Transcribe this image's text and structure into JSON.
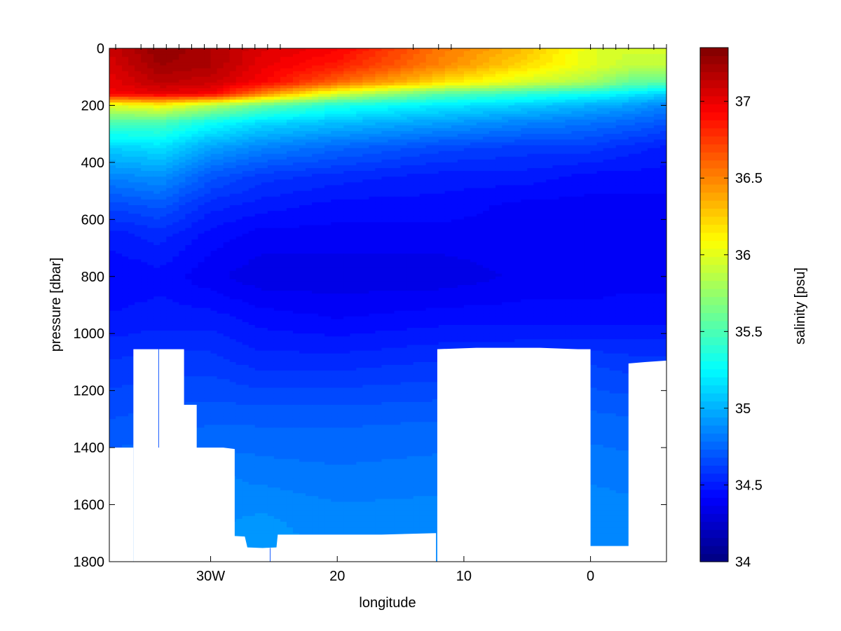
{
  "chart_data": {
    "type": "heatmap",
    "title": "",
    "xlabel": "longitude",
    "ylabel": "pressure [dbar]",
    "colorbar_label": "salinity [psu]",
    "x_range": [
      -38,
      6
    ],
    "y_range": [
      0,
      1800
    ],
    "y_reversed": true,
    "x_ticks": [
      {
        "value": -30,
        "label": "30W"
      },
      {
        "value": -20,
        "label": "20"
      },
      {
        "value": -10,
        "label": "10"
      },
      {
        "value": 0,
        "label": "0"
      }
    ],
    "y_ticks": [
      {
        "value": 0,
        "label": "0"
      },
      {
        "value": 200,
        "label": "200"
      },
      {
        "value": 400,
        "label": "400"
      },
      {
        "value": 600,
        "label": "600"
      },
      {
        "value": 800,
        "label": "800"
      },
      {
        "value": 1000,
        "label": "1000"
      },
      {
        "value": 1200,
        "label": "1200"
      },
      {
        "value": 1400,
        "label": "1400"
      },
      {
        "value": 1600,
        "label": "1600"
      },
      {
        "value": 1800,
        "label": "1800"
      }
    ],
    "colorbar_range": [
      34,
      37.35
    ],
    "colorbar_ticks": [
      {
        "value": 34,
        "label": "34"
      },
      {
        "value": 34.5,
        "label": "34.5"
      },
      {
        "value": 35,
        "label": "35"
      },
      {
        "value": 35.5,
        "label": "35.5"
      },
      {
        "value": 36,
        "label": "36"
      },
      {
        "value": 36.5,
        "label": "36.5"
      },
      {
        "value": 37,
        "label": "37"
      }
    ],
    "colormap": "jet",
    "station_longitudes": [
      -37.5,
      -35.5,
      -34.5,
      -33.5,
      -32.5,
      -31.5,
      -30.5,
      -29.5,
      -28.5,
      -27.5,
      -26.5,
      -25.5,
      -24.5,
      -14,
      -12,
      -11,
      -4,
      0,
      1,
      2,
      3,
      5,
      6
    ],
    "salinity_profile": {
      "depths": [
        0,
        60,
        120,
        160,
        200,
        260,
        350,
        450,
        550,
        650,
        800,
        950,
        1100,
        1300,
        1500,
        1650,
        1800
      ],
      "lon_points": [
        -38,
        -34,
        -30,
        -26,
        -20,
        -12,
        -5,
        0,
        3,
        6
      ],
      "values": [
        [
          37.1,
          37.3,
          37.2,
          37.05,
          36.95,
          36.55,
          36.3,
          36.0,
          35.95,
          35.95
        ],
        [
          37.05,
          37.25,
          37.2,
          37.0,
          36.85,
          36.5,
          36.2,
          36.0,
          35.9,
          35.9
        ],
        [
          37.0,
          37.15,
          37.1,
          36.95,
          36.6,
          36.2,
          35.95,
          35.8,
          35.6,
          35.55
        ],
        [
          36.95,
          37.0,
          36.95,
          36.5,
          35.95,
          35.55,
          35.4,
          35.3,
          35.2,
          35.1
        ],
        [
          36.0,
          36.1,
          35.85,
          35.6,
          35.35,
          35.2,
          35.1,
          35.0,
          34.95,
          34.85
        ],
        [
          35.5,
          35.5,
          35.3,
          35.15,
          35.05,
          34.95,
          34.85,
          34.8,
          34.75,
          34.7
        ],
        [
          35.1,
          35.15,
          34.95,
          34.85,
          34.75,
          34.65,
          34.6,
          34.6,
          34.55,
          34.5
        ],
        [
          34.85,
          34.9,
          34.7,
          34.6,
          34.55,
          34.5,
          34.5,
          34.45,
          34.45,
          34.45
        ],
        [
          34.65,
          34.7,
          34.55,
          34.5,
          34.45,
          34.45,
          34.4,
          34.4,
          34.4,
          34.4
        ],
        [
          34.5,
          34.55,
          34.45,
          34.4,
          34.4,
          34.4,
          34.4,
          34.38,
          34.4,
          34.4
        ],
        [
          34.42,
          34.45,
          34.38,
          34.33,
          34.33,
          34.33,
          34.38,
          34.38,
          34.4,
          34.4
        ],
        [
          34.48,
          34.5,
          34.5,
          34.45,
          34.42,
          34.45,
          34.45,
          34.45,
          34.45,
          34.45
        ],
        [
          34.58,
          34.6,
          34.6,
          34.55,
          34.55,
          34.58,
          34.6,
          34.62,
          34.6,
          34.6
        ],
        [
          34.68,
          34.7,
          34.72,
          34.72,
          34.72,
          34.73,
          34.75,
          34.75,
          34.74,
          34.72
        ],
        [
          34.78,
          34.8,
          34.85,
          34.82,
          34.8,
          34.82,
          34.83,
          34.83,
          34.82,
          34.8
        ],
        [
          34.82,
          34.84,
          34.88,
          34.9,
          34.86,
          34.86,
          34.87,
          34.87,
          34.86,
          34.84
        ],
        [
          34.84,
          34.86,
          34.9,
          34.93,
          34.88,
          34.88,
          34.9,
          34.9,
          34.88,
          34.86
        ]
      ]
    },
    "seafloor_blanks": [
      [
        [
          -38,
          1800
        ],
        [
          -38,
          1400
        ],
        [
          -36.1,
          1400
        ],
        [
          -36.1,
          1800
        ]
      ],
      [
        [
          -36.1,
          1800
        ],
        [
          -36.1,
          1055
        ],
        [
          -32.1,
          1055
        ],
        [
          -32.1,
          1250
        ],
        [
          -31.1,
          1250
        ],
        [
          -31.1,
          1400
        ],
        [
          -29,
          1400
        ],
        [
          -28.1,
          1405
        ],
        [
          -28.1,
          1710
        ],
        [
          -27.3,
          1712
        ],
        [
          -27.1,
          1750
        ],
        [
          -25.9,
          1752
        ],
        [
          -24.8,
          1750
        ],
        [
          -24.7,
          1705
        ],
        [
          -23,
          1705
        ],
        [
          -16.5,
          1705
        ],
        [
          -12.2,
          1700
        ],
        [
          -12.2,
          1800
        ]
      ],
      [
        [
          -12.1,
          1800
        ],
        [
          -12.1,
          1055
        ],
        [
          -9,
          1050
        ],
        [
          -4,
          1050
        ],
        [
          -1,
          1055
        ],
        [
          0,
          1055
        ],
        [
          0,
          1745
        ],
        [
          3,
          1745
        ],
        [
          3,
          1105
        ],
        [
          4.3,
          1100
        ],
        [
          6,
          1095
        ],
        [
          6,
          1800
        ]
      ]
    ],
    "cast_lines": [
      {
        "lon": -34.1,
        "from": 1055,
        "to": 1400
      },
      {
        "lon": -25.3,
        "from": 1752,
        "to": 1800
      }
    ]
  }
}
